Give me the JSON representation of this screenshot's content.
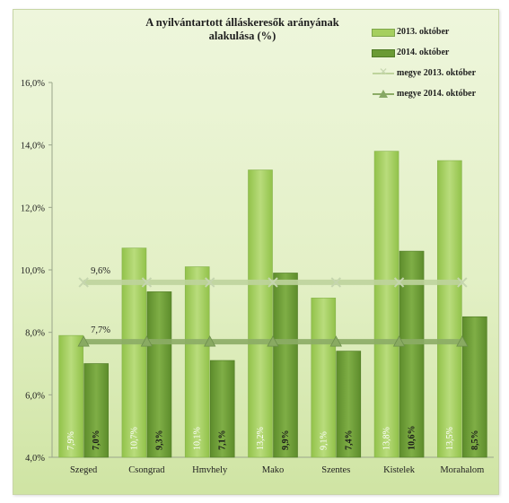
{
  "chart_data": {
    "type": "bar",
    "title": "A nyilvántartott álláskeresők arányának alakulása (%)",
    "title_lines": [
      "A nyilvántartott álláskeresők arányának",
      "alakulása (%)"
    ],
    "categories": [
      "Szeged",
      "Csongrad",
      "Hmvhely",
      "Mako",
      "Szentes",
      "Kistelek",
      "Morahalom"
    ],
    "series": [
      {
        "name": "2013. október",
        "kind": "bar",
        "color": "#a5cf5f",
        "values": [
          7.9,
          10.7,
          10.1,
          13.2,
          9.1,
          13.8,
          13.5
        ],
        "labels": [
          "7,9%",
          "10,7%",
          "10,1%",
          "13,2%",
          "9,1%",
          "13,8%",
          "13,5%"
        ]
      },
      {
        "name": "2014. október",
        "kind": "bar",
        "color": "#6a9a34",
        "values": [
          7.0,
          9.3,
          7.1,
          9.9,
          7.4,
          10.6,
          8.5
        ],
        "labels": [
          "7,0%",
          "9,3%",
          "7,1%",
          "9,9%",
          "7,4%",
          "10,6%",
          "8,5%"
        ]
      },
      {
        "name": "megye 2013. október",
        "kind": "line",
        "marker": "x",
        "color": "#bed39c",
        "values": [
          9.6,
          9.6,
          9.6,
          9.6,
          9.6,
          9.6,
          9.6
        ],
        "label": "9,6%"
      },
      {
        "name": "megye 2014. október",
        "kind": "line",
        "marker": "triangle",
        "color": "#8cac66",
        "values": [
          7.7,
          7.7,
          7.7,
          7.7,
          7.7,
          7.7,
          7.7
        ],
        "label": "7,7%"
      }
    ],
    "ylim": [
      4.0,
      16.0
    ],
    "yticks": [
      4.0,
      6.0,
      8.0,
      10.0,
      12.0,
      14.0,
      16.0
    ],
    "ytick_labels": [
      "4,0%",
      "6,0%",
      "8,0%",
      "10,0%",
      "12,0%",
      "14,0%",
      "16,0%"
    ],
    "grid": false,
    "legend_position": "top-right"
  }
}
